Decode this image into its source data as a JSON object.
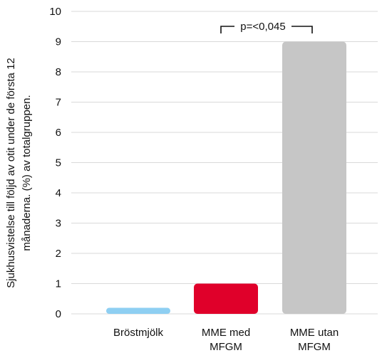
{
  "chart_data": {
    "type": "bar",
    "categories": [
      [
        "Bröstmjölk"
      ],
      [
        "MME med",
        "MFGM"
      ],
      [
        "MME utan",
        "MFGM"
      ]
    ],
    "values": [
      0.2,
      1.0,
      9.0
    ],
    "colors": [
      "#8ecff2",
      "#e0002a",
      "#c6c6c6"
    ],
    "ylabel": [
      "Sjukhusvistelse till följd av otit under de första 12",
      "månaderna. (%) av totalgruppen."
    ],
    "ylim": [
      0,
      10
    ],
    "yticks": [
      0,
      1,
      2,
      3,
      4,
      5,
      6,
      7,
      8,
      9,
      10
    ],
    "grid": true,
    "annotation": {
      "text": "p=<0,045",
      "between": [
        1,
        2
      ]
    }
  }
}
